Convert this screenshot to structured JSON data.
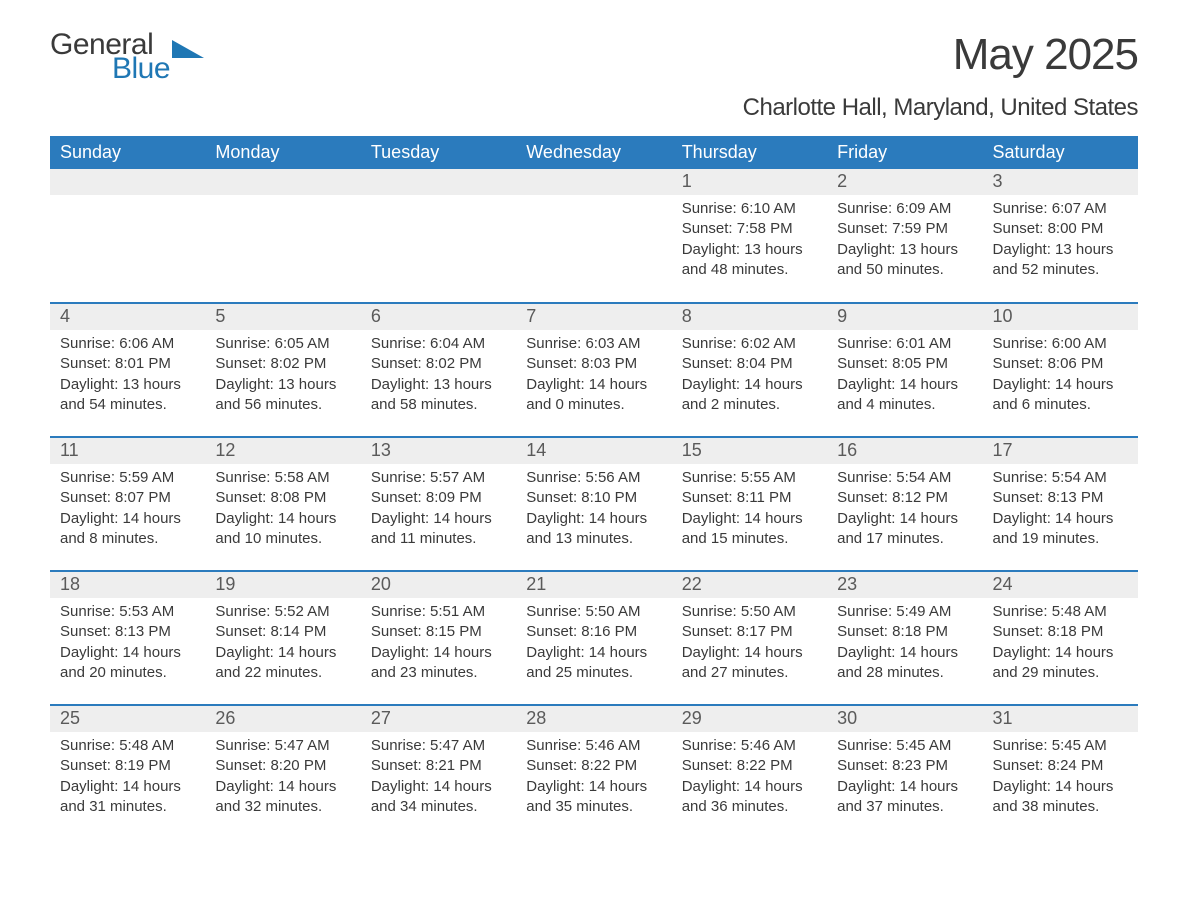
{
  "logo": {
    "word1": "General",
    "word2": "Blue"
  },
  "title": "May 2025",
  "location": "Charlotte Hall, Maryland, United States",
  "colors": {
    "header_bg": "#2b7bbd",
    "header_text": "#ffffff",
    "daynum_bg": "#eeeeee",
    "border": "#2b7bbd",
    "body_text": "#3a3a3a",
    "logo_blue": "#1f77b4",
    "page_bg": "#ffffff"
  },
  "dayHeaders": [
    "Sunday",
    "Monday",
    "Tuesday",
    "Wednesday",
    "Thursday",
    "Friday",
    "Saturday"
  ],
  "labels": {
    "sunrise": "Sunrise:",
    "sunset": "Sunset:",
    "daylight": "Daylight:"
  },
  "weeks": [
    [
      null,
      null,
      null,
      null,
      {
        "n": "1",
        "sunrise": "6:10 AM",
        "sunset": "7:58 PM",
        "daylight": "13 hours and 48 minutes."
      },
      {
        "n": "2",
        "sunrise": "6:09 AM",
        "sunset": "7:59 PM",
        "daylight": "13 hours and 50 minutes."
      },
      {
        "n": "3",
        "sunrise": "6:07 AM",
        "sunset": "8:00 PM",
        "daylight": "13 hours and 52 minutes."
      }
    ],
    [
      {
        "n": "4",
        "sunrise": "6:06 AM",
        "sunset": "8:01 PM",
        "daylight": "13 hours and 54 minutes."
      },
      {
        "n": "5",
        "sunrise": "6:05 AM",
        "sunset": "8:02 PM",
        "daylight": "13 hours and 56 minutes."
      },
      {
        "n": "6",
        "sunrise": "6:04 AM",
        "sunset": "8:02 PM",
        "daylight": "13 hours and 58 minutes."
      },
      {
        "n": "7",
        "sunrise": "6:03 AM",
        "sunset": "8:03 PM",
        "daylight": "14 hours and 0 minutes."
      },
      {
        "n": "8",
        "sunrise": "6:02 AM",
        "sunset": "8:04 PM",
        "daylight": "14 hours and 2 minutes."
      },
      {
        "n": "9",
        "sunrise": "6:01 AM",
        "sunset": "8:05 PM",
        "daylight": "14 hours and 4 minutes."
      },
      {
        "n": "10",
        "sunrise": "6:00 AM",
        "sunset": "8:06 PM",
        "daylight": "14 hours and 6 minutes."
      }
    ],
    [
      {
        "n": "11",
        "sunrise": "5:59 AM",
        "sunset": "8:07 PM",
        "daylight": "14 hours and 8 minutes."
      },
      {
        "n": "12",
        "sunrise": "5:58 AM",
        "sunset": "8:08 PM",
        "daylight": "14 hours and 10 minutes."
      },
      {
        "n": "13",
        "sunrise": "5:57 AM",
        "sunset": "8:09 PM",
        "daylight": "14 hours and 11 minutes."
      },
      {
        "n": "14",
        "sunrise": "5:56 AM",
        "sunset": "8:10 PM",
        "daylight": "14 hours and 13 minutes."
      },
      {
        "n": "15",
        "sunrise": "5:55 AM",
        "sunset": "8:11 PM",
        "daylight": "14 hours and 15 minutes."
      },
      {
        "n": "16",
        "sunrise": "5:54 AM",
        "sunset": "8:12 PM",
        "daylight": "14 hours and 17 minutes."
      },
      {
        "n": "17",
        "sunrise": "5:54 AM",
        "sunset": "8:13 PM",
        "daylight": "14 hours and 19 minutes."
      }
    ],
    [
      {
        "n": "18",
        "sunrise": "5:53 AM",
        "sunset": "8:13 PM",
        "daylight": "14 hours and 20 minutes."
      },
      {
        "n": "19",
        "sunrise": "5:52 AM",
        "sunset": "8:14 PM",
        "daylight": "14 hours and 22 minutes."
      },
      {
        "n": "20",
        "sunrise": "5:51 AM",
        "sunset": "8:15 PM",
        "daylight": "14 hours and 23 minutes."
      },
      {
        "n": "21",
        "sunrise": "5:50 AM",
        "sunset": "8:16 PM",
        "daylight": "14 hours and 25 minutes."
      },
      {
        "n": "22",
        "sunrise": "5:50 AM",
        "sunset": "8:17 PM",
        "daylight": "14 hours and 27 minutes."
      },
      {
        "n": "23",
        "sunrise": "5:49 AM",
        "sunset": "8:18 PM",
        "daylight": "14 hours and 28 minutes."
      },
      {
        "n": "24",
        "sunrise": "5:48 AM",
        "sunset": "8:18 PM",
        "daylight": "14 hours and 29 minutes."
      }
    ],
    [
      {
        "n": "25",
        "sunrise": "5:48 AM",
        "sunset": "8:19 PM",
        "daylight": "14 hours and 31 minutes."
      },
      {
        "n": "26",
        "sunrise": "5:47 AM",
        "sunset": "8:20 PM",
        "daylight": "14 hours and 32 minutes."
      },
      {
        "n": "27",
        "sunrise": "5:47 AM",
        "sunset": "8:21 PM",
        "daylight": "14 hours and 34 minutes."
      },
      {
        "n": "28",
        "sunrise": "5:46 AM",
        "sunset": "8:22 PM",
        "daylight": "14 hours and 35 minutes."
      },
      {
        "n": "29",
        "sunrise": "5:46 AM",
        "sunset": "8:22 PM",
        "daylight": "14 hours and 36 minutes."
      },
      {
        "n": "30",
        "sunrise": "5:45 AM",
        "sunset": "8:23 PM",
        "daylight": "14 hours and 37 minutes."
      },
      {
        "n": "31",
        "sunrise": "5:45 AM",
        "sunset": "8:24 PM",
        "daylight": "14 hours and 38 minutes."
      }
    ]
  ]
}
